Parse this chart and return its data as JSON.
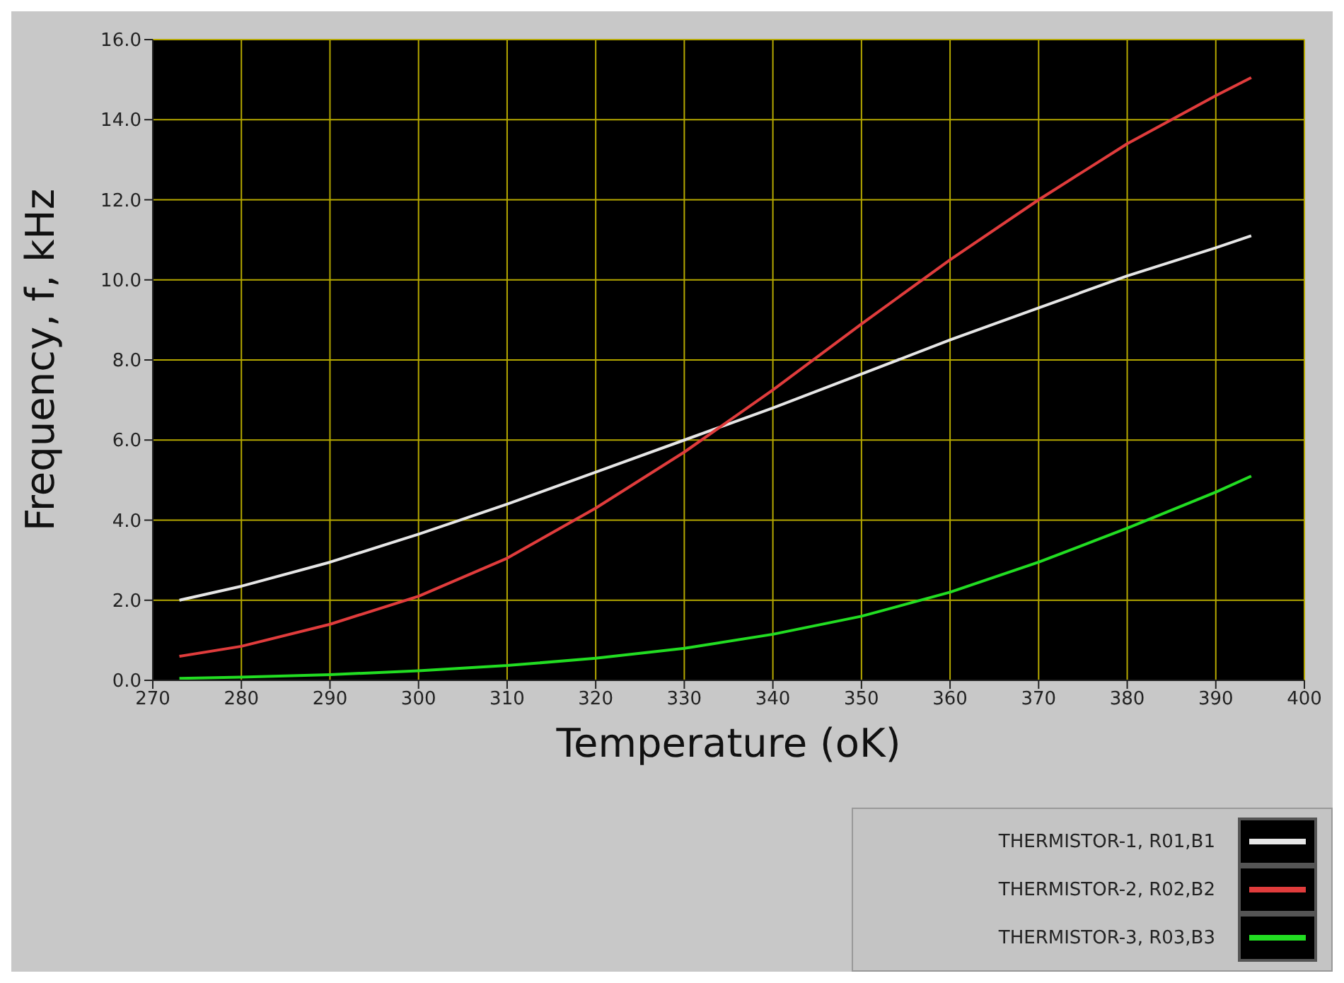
{
  "chart_data": {
    "type": "line",
    "xlabel": "Temperature (oK)",
    "ylabel": "Frequency, f,  kHz",
    "x": [
      273,
      280,
      290,
      300,
      310,
      320,
      330,
      340,
      350,
      360,
      370,
      380,
      390,
      394
    ],
    "series": [
      {
        "name": "THERMISTOR-1,  R01,B1",
        "color": "#e6e6e6",
        "values": [
          2.0,
          2.35,
          2.95,
          3.65,
          4.4,
          5.2,
          6.0,
          6.8,
          7.65,
          8.5,
          9.3,
          10.1,
          10.8,
          11.1
        ]
      },
      {
        "name": "THERMISTOR-2,  R02,B2",
        "color": "#e03c3c",
        "values": [
          0.6,
          0.85,
          1.4,
          2.1,
          3.05,
          4.3,
          5.7,
          7.25,
          8.9,
          10.5,
          12.0,
          13.4,
          14.6,
          15.05
        ]
      },
      {
        "name": "THERMISTOR-3,  R03,B3",
        "color": "#22dd22",
        "values": [
          0.05,
          0.08,
          0.14,
          0.24,
          0.37,
          0.55,
          0.8,
          1.15,
          1.6,
          2.2,
          2.95,
          3.8,
          4.7,
          5.1
        ]
      }
    ],
    "xlim": [
      270,
      400
    ],
    "xticks": [
      270,
      280,
      290,
      300,
      310,
      320,
      330,
      340,
      350,
      360,
      370,
      380,
      390,
      400
    ],
    "ylim": [
      0,
      16
    ],
    "yticks": [
      {
        "value": 0,
        "label": "0.0"
      },
      {
        "value": 2,
        "label": "2.0"
      },
      {
        "value": 4,
        "label": "4.0"
      },
      {
        "value": 6,
        "label": "6.0"
      },
      {
        "value": 8,
        "label": "8.0"
      },
      {
        "value": 10,
        "label": "10.0"
      },
      {
        "value": 12,
        "label": "12.0"
      },
      {
        "value": 14,
        "label": "14.0"
      },
      {
        "value": 16,
        "label": "16.0"
      }
    ],
    "grid": true,
    "legend": "bottom right",
    "marker": "none",
    "line_style": "solid"
  }
}
